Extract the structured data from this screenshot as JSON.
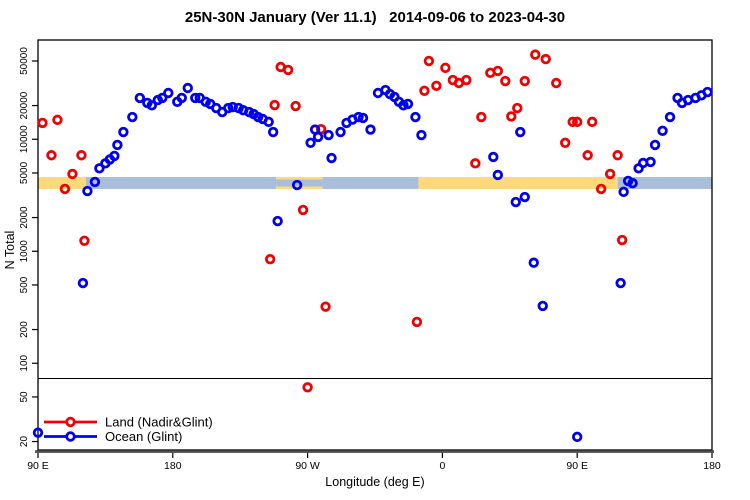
{
  "colors": {
    "land": "#f00000",
    "ocean": "#0000ee",
    "band_orange": "#fed87d",
    "band_blue": "#a9bedb",
    "axis": "#000000",
    "bottom_rule": "#4d4d4d"
  },
  "chart_data": {
    "type": "scatter",
    "title": "25N-30N January (Ver 11.1)   2014-09-06 to 2023-04-30",
    "xlabel": "Longitude (deg E)",
    "ylabel": "N Total",
    "y_scale": "log",
    "grid": false,
    "x_axis": {
      "range": [
        90,
        540
      ],
      "ticks": [
        {
          "value": 90,
          "label": "90 E"
        },
        {
          "value": 180,
          "label": "180"
        },
        {
          "value": 270,
          "label": "90 W"
        },
        {
          "value": 360,
          "label": "0"
        },
        {
          "value": 450,
          "label": "90 E"
        },
        {
          "value": 540,
          "label": "180"
        }
      ]
    },
    "y_axis": {
      "range": [
        16.8,
        77000
      ],
      "ticks": [
        20,
        50,
        100,
        200,
        500,
        1000,
        2000,
        5000,
        10000,
        20000,
        50000
      ]
    },
    "reference_line_y": 73,
    "band": {
      "y_from": 3600,
      "y_to": 4600,
      "segments": [
        {
          "from": 90,
          "to": 122,
          "color": "band_orange"
        },
        {
          "from": 122,
          "to": 249,
          "color": "band_blue"
        },
        {
          "from": 249,
          "to": 280,
          "color": "mixed"
        },
        {
          "from": 280,
          "to": 344,
          "color": "band_blue"
        },
        {
          "from": 344,
          "to": 477,
          "color": "band_orange"
        },
        {
          "from": 477,
          "to": 540,
          "color": "band_blue"
        }
      ]
    },
    "legend": {
      "position": "bottom-left",
      "entries": [
        {
          "label": "Land (Nadir&Glint)",
          "color": "land"
        },
        {
          "label": "Ocean (Glint)",
          "color": "ocean"
        }
      ]
    },
    "series": [
      {
        "name": "Land (Nadir&Glint)",
        "color": "land",
        "points": [
          [
            93,
            14000
          ],
          [
            99,
            7200
          ],
          [
            103,
            14900
          ],
          [
            108,
            3600
          ],
          [
            113,
            4900
          ],
          [
            119,
            7200
          ],
          [
            121,
            1240
          ],
          [
            245,
            850
          ],
          [
            248,
            20200
          ],
          [
            252,
            44200
          ],
          [
            257,
            41600
          ],
          [
            262,
            19800
          ],
          [
            267,
            2340
          ],
          [
            270,
            61
          ],
          [
            279,
            12300
          ],
          [
            282,
            320
          ],
          [
            343,
            234
          ],
          [
            348,
            27100
          ],
          [
            351,
            50000
          ],
          [
            356,
            30000
          ],
          [
            362,
            43400
          ],
          [
            367,
            33800
          ],
          [
            371,
            31800
          ],
          [
            376,
            33800
          ],
          [
            382,
            6100
          ],
          [
            386,
            15800
          ],
          [
            392,
            39200
          ],
          [
            397,
            40800
          ],
          [
            402,
            33100
          ],
          [
            406,
            16000
          ],
          [
            410,
            19000
          ],
          [
            415,
            33100
          ],
          [
            422,
            57000
          ],
          [
            429,
            52000
          ],
          [
            436,
            31800
          ],
          [
            442,
            9300
          ],
          [
            447,
            14300
          ],
          [
            450,
            14300
          ],
          [
            457,
            7200
          ],
          [
            460,
            14300
          ],
          [
            466,
            3600
          ],
          [
            472,
            4900
          ],
          [
            477,
            7200
          ],
          [
            480,
            1260
          ]
        ]
      },
      {
        "name": "Ocean (Glint)",
        "color": "ocean",
        "points": [
          [
            90,
            24
          ],
          [
            120,
            520
          ],
          [
            123,
            3450
          ],
          [
            128,
            4160
          ],
          [
            131,
            5500
          ],
          [
            135,
            6100
          ],
          [
            138,
            6600
          ],
          [
            141,
            7100
          ],
          [
            143,
            8900
          ],
          [
            147,
            11600
          ],
          [
            153,
            15800
          ],
          [
            158,
            23400
          ],
          [
            163,
            21100
          ],
          [
            166,
            20100
          ],
          [
            170,
            22400
          ],
          [
            173,
            23400
          ],
          [
            177,
            25900
          ],
          [
            183,
            21600
          ],
          [
            186,
            23400
          ],
          [
            190,
            28700
          ],
          [
            195,
            23400
          ],
          [
            198,
            23400
          ],
          [
            202,
            21600
          ],
          [
            205,
            20700
          ],
          [
            209,
            19000
          ],
          [
            213,
            17500
          ],
          [
            217,
            19000
          ],
          [
            220,
            19400
          ],
          [
            224,
            19000
          ],
          [
            227,
            18200
          ],
          [
            231,
            17500
          ],
          [
            234,
            16800
          ],
          [
            237,
            15800
          ],
          [
            240,
            15200
          ],
          [
            244,
            14300
          ],
          [
            247,
            11600
          ],
          [
            250,
            1860
          ],
          [
            263,
            3900
          ],
          [
            272,
            9300
          ],
          [
            275,
            12200
          ],
          [
            277,
            10500
          ],
          [
            284,
            10900
          ],
          [
            286,
            6800
          ],
          [
            292,
            11600
          ],
          [
            296,
            14000
          ],
          [
            300,
            15000
          ],
          [
            304,
            15800
          ],
          [
            307,
            15500
          ],
          [
            312,
            12200
          ],
          [
            317,
            25900
          ],
          [
            322,
            27500
          ],
          [
            325,
            25300
          ],
          [
            328,
            23900
          ],
          [
            331,
            21600
          ],
          [
            334,
            20100
          ],
          [
            337,
            20700
          ],
          [
            342,
            15800
          ],
          [
            346,
            10900
          ],
          [
            394,
            6950
          ],
          [
            397,
            4800
          ],
          [
            409,
            2750
          ],
          [
            412,
            11600
          ],
          [
            415,
            3050
          ],
          [
            421,
            790
          ],
          [
            427,
            325
          ],
          [
            450,
            22
          ],
          [
            479,
            520
          ],
          [
            481,
            3390
          ],
          [
            484,
            4250
          ],
          [
            487,
            4050
          ],
          [
            491,
            5500
          ],
          [
            494,
            6140
          ],
          [
            499,
            6270
          ],
          [
            502,
            8900
          ],
          [
            507,
            11900
          ],
          [
            512,
            15800
          ],
          [
            517,
            23400
          ],
          [
            520,
            21100
          ],
          [
            524,
            22400
          ],
          [
            529,
            23400
          ],
          [
            533,
            24700
          ],
          [
            537,
            26400
          ]
        ]
      }
    ]
  }
}
